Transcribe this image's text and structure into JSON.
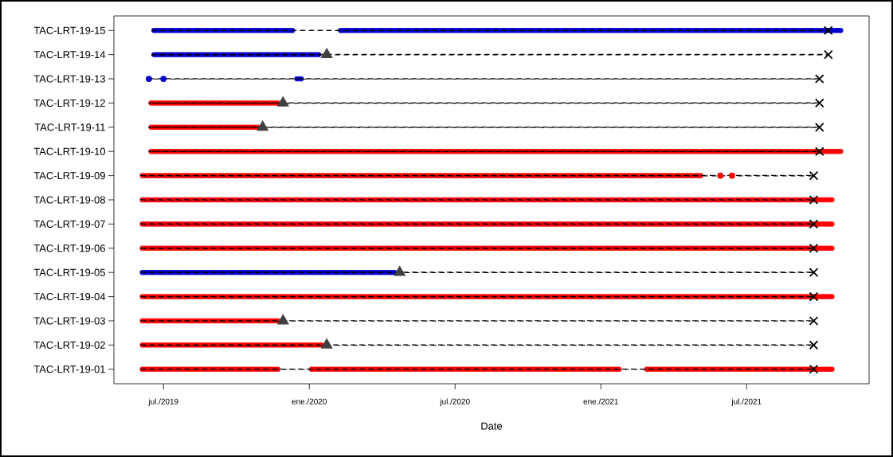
{
  "chart_data": {
    "type": "bar",
    "orientation": "horizontal",
    "xlabel": "Date",
    "categories": [
      "TAC-LRT-19-15",
      "TAC-LRT-19-14",
      "TAC-LRT-19-13",
      "TAC-LRT-19-12",
      "TAC-LRT-19-11",
      "TAC-LRT-19-10",
      "TAC-LRT-19-09",
      "TAC-LRT-19-08",
      "TAC-LRT-19-07",
      "TAC-LRT-19-06",
      "TAC-LRT-19-05",
      "TAC-LRT-19-04",
      "TAC-LRT-19-03",
      "TAC-LRT-19-02",
      "TAC-LRT-19-01"
    ],
    "xlim": [
      2019.33,
      2021.92
    ],
    "xticks": [
      {
        "value": 2019.5,
        "label": "jul./2019"
      },
      {
        "value": 2020.0,
        "label": "ene./2020"
      },
      {
        "value": 2020.5,
        "label": "jul./2020"
      },
      {
        "value": 2021.0,
        "label": "ene./2021"
      },
      {
        "value": 2021.5,
        "label": "jul./2021"
      }
    ],
    "series": [
      {
        "line_style": "dashed",
        "color": "#000000",
        "base": [
          2019.46,
          2019.46,
          2019.45,
          2019.45,
          2019.45,
          2019.45,
          2019.42,
          2019.42,
          2019.42,
          2019.42,
          2019.42,
          2019.42,
          2019.42,
          2019.42,
          2019.42
        ],
        "values": [
          2.32,
          2.32,
          2.3,
          2.3,
          2.3,
          2.3,
          2.31,
          2.31,
          2.31,
          2.31,
          2.31,
          2.31,
          2.31,
          2.31,
          2.31
        ]
      },
      {
        "color": "#0000cc",
        "base": [
          2019.46,
          2019.46,
          null,
          null,
          null,
          null,
          null,
          null,
          null,
          null,
          2019.42,
          null,
          null,
          null,
          null
        ],
        "values": [
          0.49,
          0.58,
          null,
          null,
          null,
          null,
          null,
          null,
          null,
          null,
          0.88,
          null,
          null,
          null,
          null
        ]
      },
      {
        "color": "#0000cc",
        "base": [
          2020.1,
          null,
          null,
          null,
          null,
          null,
          null,
          null,
          null,
          null,
          null,
          null,
          null,
          null,
          null
        ],
        "values": [
          1.73,
          null,
          null,
          null,
          null,
          null,
          null,
          null,
          null,
          null,
          null,
          null,
          null,
          null,
          null
        ]
      },
      {
        "color": "#0000cc",
        "base": [
          null,
          null,
          2019.95,
          null,
          null,
          null,
          null,
          null,
          null,
          null,
          null,
          null,
          null,
          null,
          null
        ],
        "values": [
          null,
          null,
          0.03,
          null,
          null,
          null,
          null,
          null,
          null,
          null,
          null,
          null,
          null,
          null,
          null
        ]
      },
      {
        "color": "#ff0000",
        "base": [
          null,
          null,
          null,
          2019.45,
          2019.45,
          2019.45,
          2019.42,
          2019.42,
          2019.42,
          2019.42,
          null,
          2019.42,
          2019.42,
          2019.42,
          2019.42
        ],
        "values": [
          null,
          null,
          null,
          0.45,
          0.38,
          2.38,
          1.93,
          2.38,
          2.38,
          2.38,
          null,
          2.38,
          0.48,
          0.63,
          0.48
        ]
      },
      {
        "color": "#ff0000",
        "base": [
          null,
          null,
          null,
          null,
          null,
          null,
          null,
          null,
          null,
          null,
          null,
          null,
          null,
          null,
          2020.0
        ],
        "values": [
          null,
          null,
          null,
          null,
          null,
          null,
          null,
          null,
          null,
          null,
          null,
          null,
          null,
          null,
          1.07
        ]
      },
      {
        "color": "#ff0000",
        "base": [
          null,
          null,
          null,
          null,
          null,
          null,
          null,
          null,
          null,
          null,
          null,
          null,
          null,
          null,
          2021.15
        ],
        "values": [
          null,
          null,
          null,
          null,
          null,
          null,
          null,
          null,
          null,
          null,
          null,
          null,
          null,
          null,
          0.65
        ]
      },
      {
        "type": "scatter",
        "marker": "circle",
        "color": "#0000cc",
        "values": [
          null,
          null,
          2019.45,
          null,
          null,
          null,
          null,
          null,
          null,
          null,
          null,
          null,
          null,
          null,
          null
        ]
      },
      {
        "type": "scatter",
        "marker": "circle",
        "color": "#0000cc",
        "values": [
          null,
          null,
          2019.5,
          null,
          null,
          null,
          null,
          null,
          null,
          null,
          null,
          null,
          null,
          null,
          null
        ]
      },
      {
        "type": "scatter",
        "marker": "circle",
        "color": "#ff0000",
        "values": [
          null,
          null,
          null,
          null,
          null,
          null,
          2021.41,
          null,
          null,
          null,
          null,
          null,
          null,
          null,
          null
        ]
      },
      {
        "type": "scatter",
        "marker": "circle",
        "color": "#ff0000",
        "values": [
          null,
          null,
          null,
          null,
          null,
          null,
          2021.45,
          null,
          null,
          null,
          null,
          null,
          null,
          null,
          null
        ]
      },
      {
        "type": "scatter",
        "marker": "triangle",
        "color": "#404040",
        "values": [
          null,
          2020.06,
          null,
          2019.91,
          2019.84,
          null,
          null,
          null,
          null,
          null,
          2020.31,
          null,
          2019.91,
          2020.06,
          null
        ]
      },
      {
        "type": "scatter",
        "marker": "cross",
        "color": "#000000",
        "values": [
          2021.78,
          2021.78,
          2021.75,
          2021.75,
          2021.75,
          2021.75,
          2021.73,
          2021.73,
          2021.73,
          2021.73,
          2021.73,
          2021.73,
          2021.73,
          2021.73,
          2021.73
        ]
      }
    ]
  }
}
